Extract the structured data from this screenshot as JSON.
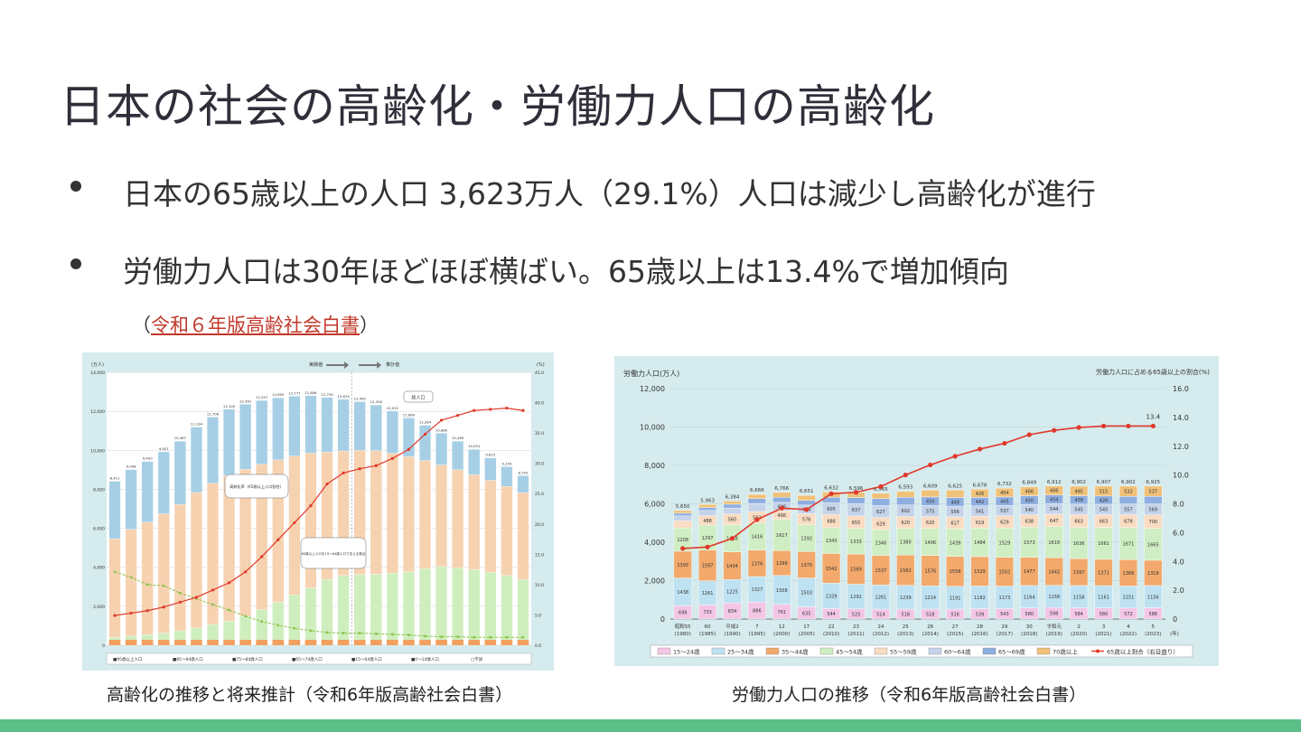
{
  "title": "日本の社会の高齢化・労働力人口の高齢化",
  "bullets": [
    "日本の65歳以上の人口 3,623万人（29.1%）人口は減少し高齢化が進行",
    "労働力人口は30年ほどほぼ横ばい。65歳以上は13.4%で増加傾向"
  ],
  "source": {
    "open": "（",
    "link": "令和６年版高齢社会白書",
    "close": "）"
  },
  "captions": {
    "left": "高齢化の推移と将来推計（令和6年版高齢社会白書）",
    "right": "労働力人口の推移（令和6年版高齢社会白書）"
  },
  "colors": {
    "accent_bar": "#5bbf87",
    "link": "#c0392b",
    "panel_bg": "#d6ebee"
  },
  "chart_data": [
    {
      "type": "bar",
      "subtype": "stacked_with_line",
      "title": "",
      "ylabel_left": "(万人)",
      "ylabel_right": "(%)",
      "ylim": [
        0,
        14000
      ],
      "y2lim": [
        0,
        45
      ],
      "left_ticks": [
        "14,000",
        "12,000",
        "10,000",
        "8,000",
        "6,000",
        "4,000",
        "2,000",
        "0"
      ],
      "right_ticks": [
        "45.0",
        "40.0",
        "35.0",
        "30.0",
        "25.0",
        "20.0",
        "15.0",
        "10.0",
        "5.0",
        "0.0"
      ],
      "annotations": [
        "実績値",
        "推計値",
        "総人口",
        "高齢化率（65歳以上人口割合）",
        "65歳以上人口を15～64歳人口で支える割合"
      ],
      "legend": [
        "■95歳以上人口",
        "■85～94歳人口",
        "■75～84歳人口",
        "■65～74歳人口",
        "■15～64歳人口",
        "■0～14歳人口",
        "□不詳"
      ],
      "totals": [
        8411,
        9008,
        9430,
        9921,
        10467,
        11194,
        11706,
        12105,
        12361,
        12557,
        12693,
        12777,
        12806,
        12709,
        12615,
        12495,
        12326,
        12012,
        11664,
        11284,
        10880,
        10469,
        10051,
        9615,
        9159,
        8700
      ],
      "series": [
        {
          "name": "高齢化率",
          "values": [
            4.9,
            5.3,
            5.7,
            6.3,
            7.1,
            7.9,
            9.1,
            10.3,
            12.1,
            14.6,
            17.4,
            20.2,
            23.0,
            26.6,
            28.4,
            29.1,
            29.6,
            30.8,
            32.3,
            34.8,
            37.1,
            37.9,
            38.7,
            38.9,
            39.1,
            38.7
          ]
        },
        {
          "name": "支える割合",
          "values": [
            12.1,
            11.2,
            10.0,
            9.8,
            8.6,
            7.7,
            6.7,
            5.8,
            4.8,
            3.9,
            3.3,
            2.8,
            2.4,
            2.1,
            2.0,
            2.0,
            1.9,
            1.8,
            1.7,
            1.5,
            1.4,
            1.4,
            1.3,
            1.3,
            1.3,
            1.3
          ]
        }
      ]
    },
    {
      "type": "bar",
      "subtype": "stacked_with_line",
      "title": "",
      "ylabel_left": "労働力人口(万人)",
      "ylabel_right": "労働力人口に占める65歳以上の割合(%)",
      "ylim": [
        0,
        12000
      ],
      "y2lim": [
        0,
        16
      ],
      "left_ticks": [
        "12,000",
        "10,000",
        "8,000",
        "6,000",
        "4,000",
        "2,000",
        "0"
      ],
      "right_ticks": [
        "16.0",
        "14.0",
        "12.0",
        "10.0",
        "8.0",
        "6.0",
        "4.0",
        "2.0",
        "0"
      ],
      "x_unit": "(年)",
      "categories": [
        [
          "昭和55",
          "(1980)"
        ],
        [
          "60",
          "(1985)"
        ],
        [
          "平成2",
          "(1990)"
        ],
        [
          "7",
          "(1995)"
        ],
        [
          "12",
          "(2000)"
        ],
        [
          "17",
          "(2005)"
        ],
        [
          "22",
          "(2010)"
        ],
        [
          "23",
          "(2011)"
        ],
        [
          "24",
          "(2012)"
        ],
        [
          "25",
          "(2013)"
        ],
        [
          "26",
          "(2014)"
        ],
        [
          "27",
          "(2015)"
        ],
        [
          "28",
          "(2016)"
        ],
        [
          "29",
          "(2017)"
        ],
        [
          "30",
          "(2018)"
        ],
        [
          "令和元",
          "(2019)"
        ],
        [
          "2",
          "(2020)"
        ],
        [
          "3",
          "(2021)"
        ],
        [
          "4",
          "(2022)"
        ],
        [
          "5",
          "(2023)"
        ]
      ],
      "totals": [
        5650,
        5963,
        6384,
        6666,
        6766,
        6651,
        6632,
        6596,
        6565,
        6593,
        6609,
        6625,
        6678,
        6732,
        6849,
        6912,
        6902,
        6907,
        6902,
        6925
      ],
      "stacks": [
        {
          "name": "15～24歳",
          "color": "#f3c6e6",
          "values": [
            699,
            733,
            834,
            886,
            761,
            635,
            544,
            525,
            514,
            518,
            518,
            516,
            539,
            543,
            580,
            598,
            584,
            580,
            572,
            586
          ]
        },
        {
          "name": "25～34歳",
          "color": "#bfe2f2",
          "values": [
            1438,
            1261,
            1225,
            1327,
            1508,
            1503,
            1329,
            1291,
            1261,
            1239,
            1214,
            1191,
            1182,
            1173,
            1164,
            1158,
            1158,
            1161,
            1151,
            1156
          ]
        },
        {
          "name": "35～44歳",
          "color": "#f2a96b",
          "values": [
            1393,
            1597,
            1434,
            1376,
            1296,
            1375,
            1542,
            1569,
            1537,
            1582,
            1576,
            1558,
            1529,
            1502,
            1477,
            1442,
            1397,
            1371,
            1366,
            1319
          ]
        },
        {
          "name": "45～54歳",
          "color": "#cfeec3",
          "values": [
            1208,
            1297,
            1418,
            1416,
            1617,
            1392,
            1343,
            1333,
            1346,
            1380,
            1406,
            1439,
            1484,
            1529,
            1573,
            1619,
            1636,
            1661,
            1671,
            1665
          ]
        },
        {
          "name": "55～59歳",
          "color": "#f9dcc2",
          "values": [
            385,
            488,
            560,
            593,
            466,
            576,
            686,
            655,
            629,
            620,
            620,
            617,
            619,
            629,
            638,
            647,
            663,
            663,
            678,
            700
          ]
        },
        {
          "name": "60～64歳",
          "color": "#c5d3ea",
          "values": [
            248,
            282,
            312,
            421,
            426,
            454,
            605,
            637,
            627,
            602,
            575,
            556,
            541,
            537,
            540,
            544,
            545,
            545,
            557,
            569
          ]
        },
        {
          "name": "65～69歳",
          "color": "#8eaee0",
          "values": [
            140,
            150,
            197,
            252,
            266,
            247,
            293,
            315,
            353,
            400,
            450,
            449,
            442,
            445,
            450,
            454,
            438,
            426,
            395,
            391
          ]
        },
        {
          "name": "70歳以上",
          "color": "#f0c178",
          "values": [
            139,
            155,
            166,
            217,
            254,
            258,
            273,
            265,
            278,
            312,
            351,
            389,
            426,
            454,
            466,
            466,
            495,
            515,
            532,
            537
          ]
        }
      ],
      "series": [
        {
          "name": "65歳以上割合（右目盛り）",
          "values": [
            4.9,
            5.0,
            5.6,
            6.9,
            7.7,
            7.6,
            8.7,
            8.8,
            9.2,
            10.0,
            10.7,
            11.3,
            11.8,
            12.2,
            12.8,
            13.1,
            13.3,
            13.4,
            13.4,
            13.4
          ]
        }
      ],
      "last_label": "13.4",
      "legend": [
        "15～24歳",
        "25～34歳",
        "35～44歳",
        "45～54歳",
        "55～59歳",
        "60～64歳",
        "65～69歳",
        "70歳以上",
        "65歳以上割合（右目盛り）"
      ]
    }
  ]
}
